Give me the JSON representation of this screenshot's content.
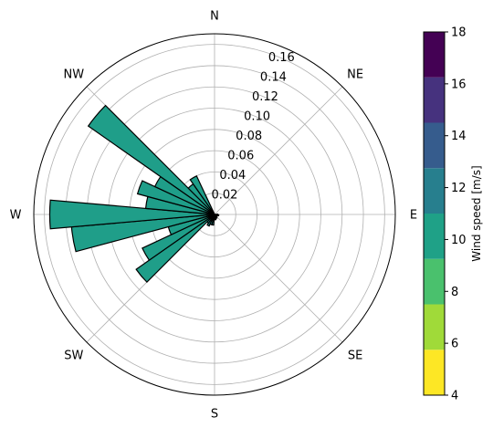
{
  "chart_data": {
    "type": "polar-bar",
    "title": "",
    "rlim": [
      0,
      0.17
    ],
    "r_ticks": [
      0.02,
      0.04,
      0.06,
      0.08,
      0.1,
      0.12,
      0.14,
      0.16
    ],
    "r_tick_labels": [
      "0.02",
      "0.04",
      "0.06",
      "0.08",
      "0.10",
      "0.12",
      "0.14",
      "0.16"
    ],
    "direction_labels": [
      {
        "label": "N",
        "angle_deg": 0
      },
      {
        "label": "NE",
        "angle_deg": 45
      },
      {
        "label": "E",
        "angle_deg": 90
      },
      {
        "label": "SE",
        "angle_deg": 135
      },
      {
        "label": "S",
        "angle_deg": 180
      },
      {
        "label": "SW",
        "angle_deg": 225
      },
      {
        "label": "W",
        "angle_deg": 270
      },
      {
        "label": "NW",
        "angle_deg": 315
      }
    ],
    "grid": true,
    "bar_width_deg": 10,
    "bars": [
      {
        "direction_deg": 250,
        "value": 0.015,
        "color": "#21908d"
      },
      {
        "direction_deg": 260,
        "value": 0.015,
        "color": "#21908d"
      },
      {
        "direction_deg": 270,
        "value": 0.008,
        "color": "#21908d"
      },
      {
        "direction_deg": 280,
        "value": 0.02,
        "color": "#21908d"
      },
      {
        "direction_deg": 290,
        "value": 0.01,
        "color": "#21908d"
      },
      {
        "direction_deg": 300,
        "value": 0.01,
        "color": "#21908d"
      },
      {
        "direction_deg": 310,
        "value": 0.01,
        "color": "#21908d"
      },
      {
        "direction_deg": 320,
        "value": 0.012,
        "color": "#21908d"
      },
      {
        "direction_deg": 330,
        "value": 0.02,
        "color": "#21908d"
      },
      {
        "direction_deg": 230,
        "value": 0.09,
        "color": "#1f9e89"
      },
      {
        "direction_deg": 240,
        "value": 0.075,
        "color": "#1f9e89"
      },
      {
        "direction_deg": 250,
        "value": 0.045,
        "color": "#1f9e89"
      },
      {
        "direction_deg": 260,
        "value": 0.135,
        "color": "#1f9e89"
      },
      {
        "direction_deg": 270,
        "value": 0.155,
        "color": "#1f9e89"
      },
      {
        "direction_deg": 280,
        "value": 0.065,
        "color": "#1f9e89"
      },
      {
        "direction_deg": 290,
        "value": 0.075,
        "color": "#1f9e89"
      },
      {
        "direction_deg": 300,
        "value": 0.062,
        "color": "#1f9e89"
      },
      {
        "direction_deg": 310,
        "value": 0.145,
        "color": "#1f9e89"
      },
      {
        "direction_deg": 320,
        "value": 0.035,
        "color": "#1f9e89"
      },
      {
        "direction_deg": 330,
        "value": 0.04,
        "color": "#1f9e89"
      },
      {
        "direction_deg": 210,
        "value": 0.012,
        "color": "#21908d"
      },
      {
        "direction_deg": 220,
        "value": 0.01,
        "color": "#21908d"
      },
      {
        "direction_deg": 90,
        "value": 0.003,
        "color": "#21908d"
      },
      {
        "direction_deg": 100,
        "value": 0.004,
        "color": "#21908d"
      },
      {
        "direction_deg": 110,
        "value": 0.003,
        "color": "#21908d"
      },
      {
        "direction_deg": 130,
        "value": 0.003,
        "color": "#21908d"
      },
      {
        "direction_deg": 150,
        "value": 0.004,
        "color": "#21908d"
      },
      {
        "direction_deg": 170,
        "value": 0.005,
        "color": "#21908d"
      },
      {
        "direction_deg": 190,
        "value": 0.01,
        "color": "#21908d"
      },
      {
        "direction_deg": 200,
        "value": 0.01,
        "color": "#21908d"
      }
    ],
    "colorbar": {
      "label": "Wind speed [m/s]",
      "ticks": [
        4,
        6,
        8,
        10,
        12,
        14,
        16,
        18
      ],
      "tick_labels": [
        "4",
        "6",
        "8",
        "10",
        "12",
        "14",
        "16",
        "18"
      ],
      "range": [
        4,
        18
      ],
      "levels": [
        {
          "from": 4,
          "to": 5.75,
          "color": "#fde725"
        },
        {
          "from": 5.75,
          "to": 7.5,
          "color": "#a0da39"
        },
        {
          "from": 7.5,
          "to": 9.25,
          "color": "#4ac16d"
        },
        {
          "from": 9.25,
          "to": 11,
          "color": "#1fa187"
        },
        {
          "from": 11,
          "to": 12.75,
          "color": "#277f8e"
        },
        {
          "from": 12.75,
          "to": 14.5,
          "color": "#365c8d"
        },
        {
          "from": 14.5,
          "to": 16.25,
          "color": "#46327e"
        },
        {
          "from": 16.25,
          "to": 18,
          "color": "#440154"
        }
      ]
    }
  }
}
